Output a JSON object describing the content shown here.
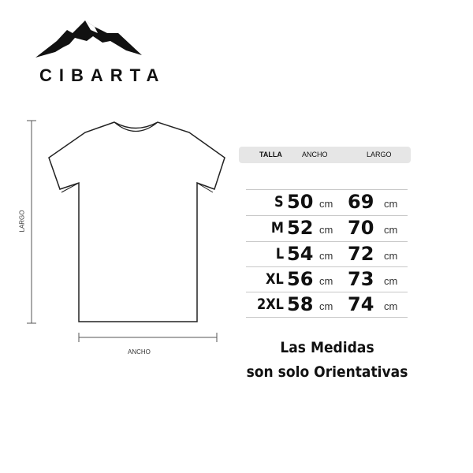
{
  "brand": {
    "name": "CIBARTA",
    "logo": "mountain-logo"
  },
  "diagram": {
    "height_label": "LARGO",
    "width_label": "ANCHO"
  },
  "table": {
    "headers": [
      "TALLA",
      "ANCHO",
      "LARGO"
    ],
    "unit": "cm",
    "rows": [
      {
        "size": "S",
        "ancho": "50",
        "largo": "69"
      },
      {
        "size": "M",
        "ancho": "52",
        "largo": "70"
      },
      {
        "size": "L",
        "ancho": "54",
        "largo": "72"
      },
      {
        "size": "XL",
        "ancho": "56",
        "largo": "73"
      },
      {
        "size": "2XL",
        "ancho": "58",
        "largo": "74"
      }
    ]
  },
  "note": {
    "line1": "Las Medidas",
    "line2": "son solo Orientativas"
  }
}
